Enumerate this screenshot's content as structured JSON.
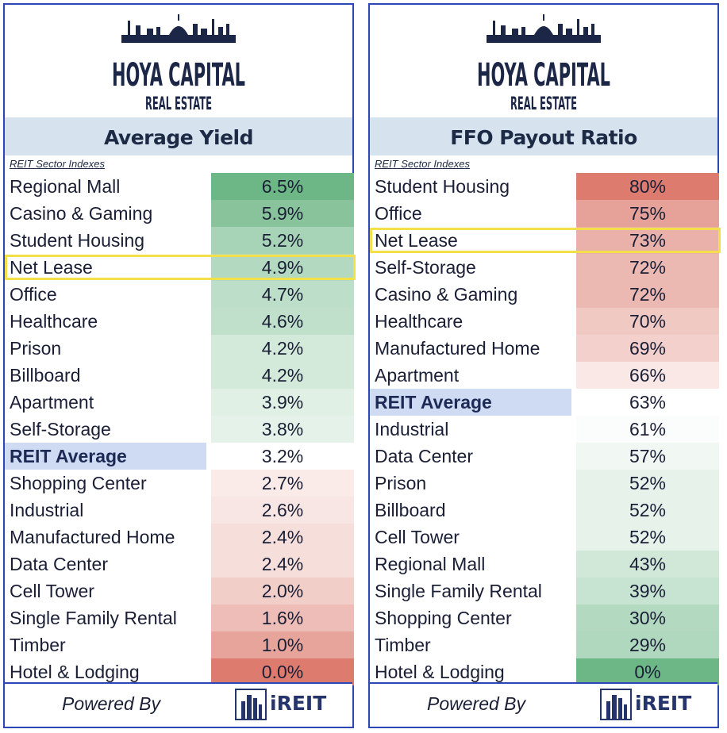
{
  "logo": {
    "line1": "HOYA CAPITAL",
    "line2": "REAL ESTATE"
  },
  "footer": {
    "powered_by": "Powered By",
    "brand": "iREIT"
  },
  "highlight": "Net Lease",
  "average_label": "REIT Average",
  "colors": {
    "panel_border": "#2c46b8",
    "header_bg": "#d6e3ef",
    "avg_label_bg": "#cfdaf3",
    "highlight_box": "#f3df4a",
    "scale_green": "#6db686",
    "scale_white": "#ffffff",
    "scale_red": "#dc7b6e"
  },
  "chart_data": [
    {
      "type": "table",
      "title": "Average Yield",
      "subtitle": "REIT Sector Indexes",
      "rows": [
        {
          "label": "Regional Mall",
          "display": "6.5%",
          "value": 6.5
        },
        {
          "label": "Casino & Gaming",
          "display": "5.9%",
          "value": 5.9
        },
        {
          "label": "Student Housing",
          "display": "5.2%",
          "value": 5.2
        },
        {
          "label": "Net Lease",
          "display": "4.9%",
          "value": 4.9
        },
        {
          "label": "Office",
          "display": "4.7%",
          "value": 4.7
        },
        {
          "label": "Healthcare",
          "display": "4.6%",
          "value": 4.6
        },
        {
          "label": "Prison",
          "display": "4.2%",
          "value": 4.2
        },
        {
          "label": "Billboard",
          "display": "4.2%",
          "value": 4.2
        },
        {
          "label": "Apartment",
          "display": "3.9%",
          "value": 3.9
        },
        {
          "label": "Self-Storage",
          "display": "3.8%",
          "value": 3.8
        },
        {
          "label": "REIT Average",
          "display": "3.2%",
          "value": 3.2
        },
        {
          "label": "Shopping Center",
          "display": "2.7%",
          "value": 2.7
        },
        {
          "label": "Industrial",
          "display": "2.6%",
          "value": 2.6
        },
        {
          "label": "Manufactured Home",
          "display": "2.4%",
          "value": 2.4
        },
        {
          "label": "Data Center",
          "display": "2.4%",
          "value": 2.4
        },
        {
          "label": "Cell Tower",
          "display": "2.0%",
          "value": 2.0
        },
        {
          "label": "Single Family Rental",
          "display": "1.6%",
          "value": 1.6
        },
        {
          "label": "Timber",
          "display": "1.0%",
          "value": 1.0
        },
        {
          "label": "Hotel & Lodging",
          "display": "0.0%",
          "value": 0.0
        }
      ],
      "color_scale": "high values green, low values red"
    },
    {
      "type": "table",
      "title": "FFO Payout Ratio",
      "subtitle": "REIT Sector Indexes",
      "rows": [
        {
          "label": "Student Housing",
          "display": "80%",
          "value": 80
        },
        {
          "label": "Office",
          "display": "75%",
          "value": 75
        },
        {
          "label": "Net Lease",
          "display": "73%",
          "value": 73
        },
        {
          "label": "Self-Storage",
          "display": "72%",
          "value": 72
        },
        {
          "label": "Casino & Gaming",
          "display": "72%",
          "value": 72
        },
        {
          "label": "Healthcare",
          "display": "70%",
          "value": 70
        },
        {
          "label": "Manufactured Home",
          "display": "69%",
          "value": 69
        },
        {
          "label": "Apartment",
          "display": "66%",
          "value": 66
        },
        {
          "label": "REIT Average",
          "display": "63%",
          "value": 63
        },
        {
          "label": "Industrial",
          "display": "61%",
          "value": 61
        },
        {
          "label": "Data Center",
          "display": "57%",
          "value": 57
        },
        {
          "label": "Prison",
          "display": "52%",
          "value": 52
        },
        {
          "label": "Billboard",
          "display": "52%",
          "value": 52
        },
        {
          "label": "Cell Tower",
          "display": "52%",
          "value": 52
        },
        {
          "label": "Regional Mall",
          "display": "43%",
          "value": 43
        },
        {
          "label": "Single Family Rental",
          "display": "39%",
          "value": 39
        },
        {
          "label": "Shopping Center",
          "display": "30%",
          "value": 30
        },
        {
          "label": "Timber",
          "display": "29%",
          "value": 29
        },
        {
          "label": "Hotel & Lodging",
          "display": "0%",
          "value": 0
        }
      ],
      "color_scale": "high values red, low values green"
    }
  ]
}
